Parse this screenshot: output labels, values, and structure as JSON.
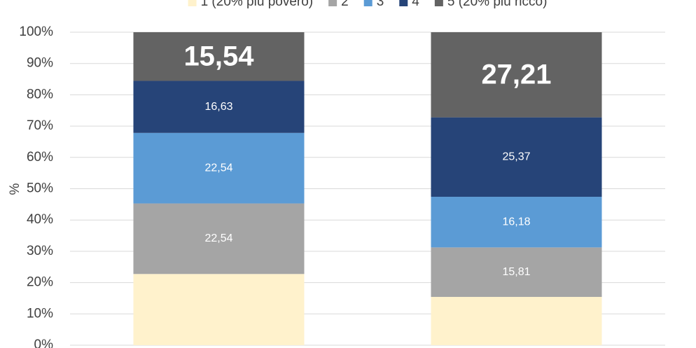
{
  "chart_data": {
    "type": "stacked_bar_100",
    "y_label": "%",
    "categories": [
      null,
      null
    ],
    "series": [
      {
        "name": "1 (20% più povero)",
        "color": "#fff2cc",
        "values": [
          22.75,
          15.43
        ]
      },
      {
        "name": "2",
        "color": "#a5a5a5",
        "values": [
          22.54,
          15.81
        ],
        "value_labels": [
          "22,54",
          "15,81"
        ]
      },
      {
        "name": "3",
        "color": "#5b9bd5",
        "values": [
          22.54,
          16.18
        ],
        "value_labels": [
          "22,54",
          "16,18"
        ]
      },
      {
        "name": "4",
        "color": "#264478",
        "values": [
          16.63,
          25.37
        ],
        "value_labels": [
          "16,63",
          "25,37"
        ]
      },
      {
        "name": "5 (20% più ricco)",
        "color": "#636363",
        "values": [
          15.54,
          27.21
        ],
        "value_labels": [
          "15,54",
          "27,21"
        ]
      }
    ],
    "ylim": [
      0,
      100
    ],
    "yticks": [
      {
        "value": 0,
        "label": "0%"
      },
      {
        "value": 10,
        "label": "10%"
      },
      {
        "value": 20,
        "label": "20%"
      },
      {
        "value": 30,
        "label": "30%"
      },
      {
        "value": 40,
        "label": "40%"
      },
      {
        "value": 50,
        "label": "50%"
      },
      {
        "value": 60,
        "label": "60%"
      },
      {
        "value": 70,
        "label": "70%"
      },
      {
        "value": 80,
        "label": "80%"
      },
      {
        "value": 90,
        "label": "90%"
      },
      {
        "value": 100,
        "label": "100%"
      }
    ],
    "grid": true,
    "legend": "top"
  }
}
